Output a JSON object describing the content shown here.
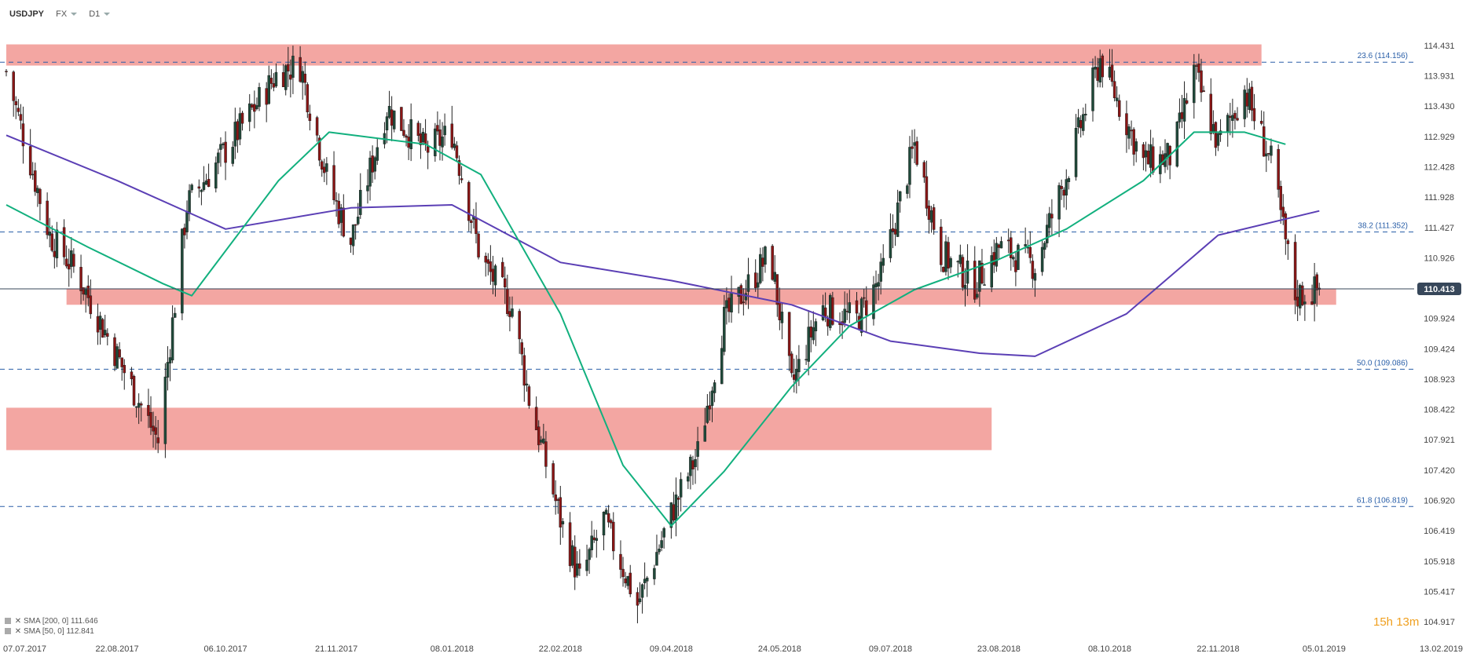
{
  "header": {
    "symbol": "USDJPY",
    "market": "FX",
    "timeframe": "D1"
  },
  "legend": [
    {
      "label": "SMA [200, 0]",
      "value": "111.646",
      "color": "#5b3fb5"
    },
    {
      "label": "SMA [50, 0]",
      "value": "112.841",
      "color": "#12b07e"
    }
  ],
  "timer": "15h 13m",
  "chart_data": {
    "type": "candlestick",
    "price_axis_ticks": [
      "114.431",
      "113.931",
      "113.430",
      "112.929",
      "112.428",
      "111.928",
      "111.427",
      "110.926",
      "110.425",
      "109.924",
      "109.424",
      "108.923",
      "108.422",
      "107.921",
      "107.420",
      "106.920",
      "106.419",
      "105.918",
      "105.417",
      "104.917"
    ],
    "date_axis_ticks": [
      "07.07.2017",
      "22.08.2017",
      "06.10.2017",
      "21.11.2017",
      "08.01.2018",
      "22.02.2018",
      "09.04.2018",
      "24.05.2018",
      "09.07.2018",
      "23.08.2018",
      "08.10.2018",
      "22.11.2018",
      "05.01.2019",
      "13.02.2019"
    ],
    "current_price": "110.413",
    "fib_levels": [
      {
        "label": "23.6 (114.156)",
        "price": 114.156
      },
      {
        "label": "38.2 (111.352)",
        "price": 111.352
      },
      {
        "label": "50.0 (109.086)",
        "price": 109.086
      },
      {
        "label": "61.8 (106.819)",
        "price": 106.819
      }
    ],
    "zones": [
      {
        "from_date": "2017-07-07",
        "to_date": "2018-12-10",
        "low": 114.1,
        "high": 114.45
      },
      {
        "from_date": "2017-08-01",
        "to_date": "2019-01-10",
        "low": 110.15,
        "high": 110.42
      },
      {
        "from_date": "2017-07-07",
        "to_date": "2018-08-20",
        "low": 107.75,
        "high": 108.45
      }
    ],
    "price_close": [
      [
        "2017-07-07",
        114.0
      ],
      [
        "2017-07-25",
        111.3
      ],
      [
        "2017-08-05",
        110.7
      ],
      [
        "2017-08-22",
        109.3
      ],
      [
        "2017-09-08",
        107.9
      ],
      [
        "2017-09-20",
        111.8
      ],
      [
        "2017-10-06",
        112.7
      ],
      [
        "2017-10-28",
        114.0
      ],
      [
        "2017-11-06",
        114.1
      ],
      [
        "2017-11-18",
        112.1
      ],
      [
        "2017-11-27",
        111.2
      ],
      [
        "2017-12-12",
        113.4
      ],
      [
        "2017-12-28",
        112.7
      ],
      [
        "2018-01-08",
        113.0
      ],
      [
        "2018-01-20",
        110.9
      ],
      [
        "2018-02-02",
        110.1
      ],
      [
        "2018-02-09",
        108.6
      ],
      [
        "2018-02-22",
        106.6
      ],
      [
        "2018-03-02",
        105.6
      ],
      [
        "2018-03-12",
        106.6
      ],
      [
        "2018-03-26",
        105.2
      ],
      [
        "2018-04-09",
        106.7
      ],
      [
        "2018-04-20",
        107.7
      ],
      [
        "2018-05-01",
        109.9
      ],
      [
        "2018-05-20",
        111.0
      ],
      [
        "2018-05-29",
        108.8
      ],
      [
        "2018-06-10",
        110.1
      ],
      [
        "2018-06-25",
        109.9
      ],
      [
        "2018-07-05",
        110.6
      ],
      [
        "2018-07-19",
        112.8
      ],
      [
        "2018-07-30",
        111.0
      ],
      [
        "2018-08-13",
        110.5
      ],
      [
        "2018-08-23",
        111.1
      ],
      [
        "2018-09-07",
        110.8
      ],
      [
        "2018-09-20",
        112.3
      ],
      [
        "2018-10-04",
        114.2
      ],
      [
        "2018-10-22",
        112.5
      ],
      [
        "2018-11-03",
        112.6
      ],
      [
        "2018-11-12",
        114.0
      ],
      [
        "2018-11-22",
        112.8
      ],
      [
        "2018-12-03",
        113.7
      ],
      [
        "2018-12-14",
        112.5
      ],
      [
        "2018-12-24",
        110.3
      ],
      [
        "2019-01-03",
        110.4
      ]
    ],
    "sma_200": [
      [
        "2017-07-07",
        112.95
      ],
      [
        "2017-08-22",
        112.2
      ],
      [
        "2017-10-06",
        111.4
      ],
      [
        "2017-11-27",
        111.75
      ],
      [
        "2018-01-08",
        111.8
      ],
      [
        "2018-02-22",
        110.85
      ],
      [
        "2018-04-09",
        110.55
      ],
      [
        "2018-05-29",
        110.15
      ],
      [
        "2018-07-09",
        109.55
      ],
      [
        "2018-08-15",
        109.35
      ],
      [
        "2018-09-07",
        109.3
      ],
      [
        "2018-10-15",
        110.0
      ],
      [
        "2018-11-22",
        111.3
      ],
      [
        "2019-01-03",
        111.7
      ]
    ],
    "sma_50": [
      [
        "2017-07-07",
        111.8
      ],
      [
        "2017-08-10",
        111.1
      ],
      [
        "2017-09-10",
        110.5
      ],
      [
        "2017-09-22",
        110.3
      ],
      [
        "2017-10-28",
        112.2
      ],
      [
        "2017-11-18",
        113.0
      ],
      [
        "2017-12-28",
        112.8
      ],
      [
        "2018-01-20",
        112.3
      ],
      [
        "2018-02-22",
        110.0
      ],
      [
        "2018-03-20",
        107.5
      ],
      [
        "2018-04-09",
        106.5
      ],
      [
        "2018-05-01",
        107.4
      ],
      [
        "2018-05-29",
        108.8
      ],
      [
        "2018-06-22",
        109.8
      ],
      [
        "2018-07-19",
        110.4
      ],
      [
        "2018-08-23",
        110.9
      ],
      [
        "2018-09-20",
        111.4
      ],
      [
        "2018-10-22",
        112.2
      ],
      [
        "2018-11-12",
        113.0
      ],
      [
        "2018-12-03",
        113.0
      ],
      [
        "2018-12-20",
        112.8
      ]
    ],
    "grid": false
  }
}
